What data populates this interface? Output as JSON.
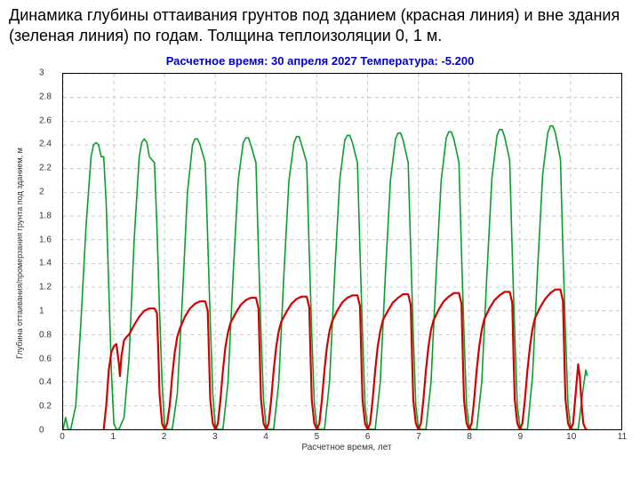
{
  "title_text": "Динамика глубины оттаивания грунтов под зданием (красная линия) и вне здания (зеленая линия) по годам. Толщина теплоизоляции 0, 1 м.",
  "chart": {
    "type": "line",
    "title": "Расчетное время: 30 апреля 2027 Температура: -5.200",
    "title_color": "#0000cc",
    "title_fontsize": 13,
    "xlabel": "Расчетное время, лет",
    "ylabel": "Глубина оттаивания/промерзания грунта под зданием, м",
    "label_fontsize": 9,
    "xlim": [
      0,
      11
    ],
    "ylim": [
      0,
      3
    ],
    "xtick_step": 1,
    "ytick_step": 0.2,
    "background_color": "#ffffff",
    "grid_color": "#c8c8c8",
    "grid_dash": "4,4",
    "axis_color": "#000000",
    "series": [
      {
        "name": "green",
        "color": "#099e2e",
        "width": 1.6,
        "data": [
          [
            0.0,
            0.0
          ],
          [
            0.05,
            0.1
          ],
          [
            0.1,
            0.0
          ],
          [
            0.15,
            0.0
          ],
          [
            0.25,
            0.2
          ],
          [
            0.35,
            0.9
          ],
          [
            0.45,
            1.7
          ],
          [
            0.55,
            2.3
          ],
          [
            0.6,
            2.4
          ],
          [
            0.65,
            2.42
          ],
          [
            0.7,
            2.4
          ],
          [
            0.75,
            2.3
          ],
          [
            0.8,
            2.3
          ],
          [
            0.85,
            1.9
          ],
          [
            0.9,
            1.2
          ],
          [
            0.95,
            0.5
          ],
          [
            1.0,
            0.05
          ],
          [
            1.05,
            0.0
          ],
          [
            1.1,
            0.0
          ],
          [
            1.2,
            0.1
          ],
          [
            1.3,
            0.6
          ],
          [
            1.4,
            1.6
          ],
          [
            1.5,
            2.3
          ],
          [
            1.55,
            2.42
          ],
          [
            1.6,
            2.45
          ],
          [
            1.65,
            2.42
          ],
          [
            1.7,
            2.3
          ],
          [
            1.8,
            2.25
          ],
          [
            1.85,
            1.7
          ],
          [
            1.9,
            1.0
          ],
          [
            1.95,
            0.4
          ],
          [
            2.0,
            0.02
          ],
          [
            2.05,
            0.0
          ],
          [
            2.15,
            0.0
          ],
          [
            2.25,
            0.3
          ],
          [
            2.35,
            1.1
          ],
          [
            2.45,
            2.0
          ],
          [
            2.55,
            2.4
          ],
          [
            2.6,
            2.45
          ],
          [
            2.65,
            2.45
          ],
          [
            2.7,
            2.4
          ],
          [
            2.8,
            2.25
          ],
          [
            2.85,
            1.6
          ],
          [
            2.9,
            0.9
          ],
          [
            2.95,
            0.3
          ],
          [
            3.0,
            0.02
          ],
          [
            3.05,
            0.0
          ],
          [
            3.15,
            0.0
          ],
          [
            3.25,
            0.4
          ],
          [
            3.35,
            1.3
          ],
          [
            3.45,
            2.1
          ],
          [
            3.55,
            2.42
          ],
          [
            3.6,
            2.46
          ],
          [
            3.65,
            2.46
          ],
          [
            3.7,
            2.4
          ],
          [
            3.8,
            2.25
          ],
          [
            3.85,
            1.5
          ],
          [
            3.9,
            0.8
          ],
          [
            3.95,
            0.25
          ],
          [
            4.0,
            0.02
          ],
          [
            4.05,
            0.0
          ],
          [
            4.15,
            0.0
          ],
          [
            4.25,
            0.4
          ],
          [
            4.35,
            1.3
          ],
          [
            4.45,
            2.1
          ],
          [
            4.55,
            2.42
          ],
          [
            4.6,
            2.47
          ],
          [
            4.65,
            2.47
          ],
          [
            4.7,
            2.4
          ],
          [
            4.8,
            2.25
          ],
          [
            4.85,
            1.5
          ],
          [
            4.9,
            0.8
          ],
          [
            4.95,
            0.22
          ],
          [
            5.0,
            0.02
          ],
          [
            5.05,
            0.0
          ],
          [
            5.15,
            0.0
          ],
          [
            5.25,
            0.4
          ],
          [
            5.35,
            1.3
          ],
          [
            5.45,
            2.1
          ],
          [
            5.55,
            2.44
          ],
          [
            5.6,
            2.48
          ],
          [
            5.65,
            2.48
          ],
          [
            5.7,
            2.42
          ],
          [
            5.8,
            2.25
          ],
          [
            5.85,
            1.5
          ],
          [
            5.9,
            0.8
          ],
          [
            5.95,
            0.2
          ],
          [
            6.0,
            0.02
          ],
          [
            6.05,
            0.0
          ],
          [
            6.15,
            0.0
          ],
          [
            6.25,
            0.4
          ],
          [
            6.35,
            1.3
          ],
          [
            6.45,
            2.1
          ],
          [
            6.55,
            2.45
          ],
          [
            6.6,
            2.5
          ],
          [
            6.65,
            2.5
          ],
          [
            6.7,
            2.44
          ],
          [
            6.8,
            2.25
          ],
          [
            6.85,
            1.5
          ],
          [
            6.9,
            0.8
          ],
          [
            6.95,
            0.2
          ],
          [
            7.0,
            0.02
          ],
          [
            7.05,
            0.0
          ],
          [
            7.15,
            0.0
          ],
          [
            7.25,
            0.4
          ],
          [
            7.35,
            1.3
          ],
          [
            7.45,
            2.1
          ],
          [
            7.55,
            2.46
          ],
          [
            7.6,
            2.51
          ],
          [
            7.65,
            2.51
          ],
          [
            7.7,
            2.45
          ],
          [
            7.8,
            2.25
          ],
          [
            7.85,
            1.5
          ],
          [
            7.9,
            0.8
          ],
          [
            7.95,
            0.2
          ],
          [
            8.0,
            0.02
          ],
          [
            8.05,
            0.0
          ],
          [
            8.15,
            0.0
          ],
          [
            8.25,
            0.4
          ],
          [
            8.35,
            1.3
          ],
          [
            8.45,
            2.12
          ],
          [
            8.55,
            2.48
          ],
          [
            8.6,
            2.53
          ],
          [
            8.65,
            2.53
          ],
          [
            8.7,
            2.47
          ],
          [
            8.8,
            2.27
          ],
          [
            8.85,
            1.5
          ],
          [
            8.9,
            0.8
          ],
          [
            8.95,
            0.2
          ],
          [
            9.0,
            0.02
          ],
          [
            9.05,
            0.0
          ],
          [
            9.15,
            0.0
          ],
          [
            9.25,
            0.45
          ],
          [
            9.35,
            1.35
          ],
          [
            9.45,
            2.15
          ],
          [
            9.55,
            2.5
          ],
          [
            9.6,
            2.56
          ],
          [
            9.65,
            2.56
          ],
          [
            9.7,
            2.5
          ],
          [
            9.8,
            2.28
          ],
          [
            9.85,
            1.5
          ],
          [
            9.9,
            0.8
          ],
          [
            9.95,
            0.2
          ],
          [
            10.0,
            0.02
          ],
          [
            10.05,
            0.0
          ],
          [
            10.15,
            0.0
          ],
          [
            10.25,
            0.35
          ],
          [
            10.3,
            0.5
          ],
          [
            10.33,
            0.45
          ]
        ]
      },
      {
        "name": "red",
        "color": "#d40000",
        "width": 2.2,
        "data": [
          [
            0.8,
            0.0
          ],
          [
            0.85,
            0.2
          ],
          [
            0.9,
            0.5
          ],
          [
            0.95,
            0.65
          ],
          [
            1.0,
            0.7
          ],
          [
            1.05,
            0.72
          ],
          [
            1.1,
            0.55
          ],
          [
            1.12,
            0.45
          ],
          [
            1.15,
            0.62
          ],
          [
            1.2,
            0.75
          ],
          [
            1.25,
            0.78
          ],
          [
            1.3,
            0.8
          ],
          [
            1.4,
            0.88
          ],
          [
            1.5,
            0.95
          ],
          [
            1.6,
            1.0
          ],
          [
            1.7,
            1.02
          ],
          [
            1.8,
            1.02
          ],
          [
            1.85,
            0.98
          ],
          [
            1.88,
            0.6
          ],
          [
            1.9,
            0.3
          ],
          [
            1.95,
            0.05
          ],
          [
            2.0,
            0.0
          ],
          [
            2.05,
            0.05
          ],
          [
            2.1,
            0.2
          ],
          [
            2.15,
            0.45
          ],
          [
            2.2,
            0.65
          ],
          [
            2.25,
            0.78
          ],
          [
            2.3,
            0.85
          ],
          [
            2.4,
            0.95
          ],
          [
            2.5,
            1.02
          ],
          [
            2.6,
            1.06
          ],
          [
            2.7,
            1.08
          ],
          [
            2.8,
            1.08
          ],
          [
            2.85,
            1.0
          ],
          [
            2.88,
            0.55
          ],
          [
            2.9,
            0.25
          ],
          [
            2.95,
            0.05
          ],
          [
            3.0,
            0.0
          ],
          [
            3.05,
            0.05
          ],
          [
            3.1,
            0.25
          ],
          [
            3.15,
            0.5
          ],
          [
            3.2,
            0.7
          ],
          [
            3.25,
            0.82
          ],
          [
            3.3,
            0.9
          ],
          [
            3.4,
            0.98
          ],
          [
            3.5,
            1.05
          ],
          [
            3.6,
            1.09
          ],
          [
            3.7,
            1.11
          ],
          [
            3.8,
            1.11
          ],
          [
            3.85,
            1.02
          ],
          [
            3.88,
            0.55
          ],
          [
            3.9,
            0.25
          ],
          [
            3.95,
            0.05
          ],
          [
            4.0,
            0.0
          ],
          [
            4.05,
            0.05
          ],
          [
            4.1,
            0.25
          ],
          [
            4.15,
            0.5
          ],
          [
            4.2,
            0.7
          ],
          [
            4.25,
            0.83
          ],
          [
            4.3,
            0.91
          ],
          [
            4.4,
            0.99
          ],
          [
            4.5,
            1.06
          ],
          [
            4.6,
            1.1
          ],
          [
            4.7,
            1.12
          ],
          [
            4.8,
            1.12
          ],
          [
            4.85,
            1.03
          ],
          [
            4.88,
            0.55
          ],
          [
            4.9,
            0.25
          ],
          [
            4.95,
            0.05
          ],
          [
            5.0,
            0.0
          ],
          [
            5.05,
            0.05
          ],
          [
            5.1,
            0.25
          ],
          [
            5.15,
            0.5
          ],
          [
            5.2,
            0.7
          ],
          [
            5.25,
            0.83
          ],
          [
            5.3,
            0.91
          ],
          [
            5.4,
            1.0
          ],
          [
            5.5,
            1.07
          ],
          [
            5.6,
            1.11
          ],
          [
            5.7,
            1.13
          ],
          [
            5.8,
            1.13
          ],
          [
            5.85,
            1.04
          ],
          [
            5.88,
            0.55
          ],
          [
            5.9,
            0.25
          ],
          [
            5.95,
            0.05
          ],
          [
            6.0,
            0.0
          ],
          [
            6.05,
            0.05
          ],
          [
            6.1,
            0.25
          ],
          [
            6.15,
            0.5
          ],
          [
            6.2,
            0.7
          ],
          [
            6.25,
            0.83
          ],
          [
            6.3,
            0.92
          ],
          [
            6.4,
            1.0
          ],
          [
            6.5,
            1.07
          ],
          [
            6.6,
            1.11
          ],
          [
            6.7,
            1.14
          ],
          [
            6.8,
            1.14
          ],
          [
            6.85,
            1.05
          ],
          [
            6.88,
            0.55
          ],
          [
            6.9,
            0.25
          ],
          [
            6.95,
            0.05
          ],
          [
            7.0,
            0.0
          ],
          [
            7.05,
            0.05
          ],
          [
            7.1,
            0.25
          ],
          [
            7.15,
            0.5
          ],
          [
            7.2,
            0.7
          ],
          [
            7.25,
            0.84
          ],
          [
            7.3,
            0.92
          ],
          [
            7.4,
            1.01
          ],
          [
            7.5,
            1.08
          ],
          [
            7.6,
            1.12
          ],
          [
            7.7,
            1.15
          ],
          [
            7.8,
            1.15
          ],
          [
            7.85,
            1.06
          ],
          [
            7.88,
            0.55
          ],
          [
            7.9,
            0.25
          ],
          [
            7.95,
            0.05
          ],
          [
            8.0,
            0.0
          ],
          [
            8.05,
            0.05
          ],
          [
            8.1,
            0.25
          ],
          [
            8.15,
            0.5
          ],
          [
            8.2,
            0.7
          ],
          [
            8.25,
            0.84
          ],
          [
            8.3,
            0.93
          ],
          [
            8.4,
            1.02
          ],
          [
            8.5,
            1.09
          ],
          [
            8.6,
            1.13
          ],
          [
            8.7,
            1.16
          ],
          [
            8.8,
            1.16
          ],
          [
            8.85,
            1.07
          ],
          [
            8.88,
            0.55
          ],
          [
            8.9,
            0.25
          ],
          [
            8.95,
            0.05
          ],
          [
            9.0,
            0.0
          ],
          [
            9.05,
            0.05
          ],
          [
            9.1,
            0.25
          ],
          [
            9.15,
            0.5
          ],
          [
            9.2,
            0.7
          ],
          [
            9.25,
            0.85
          ],
          [
            9.3,
            0.94
          ],
          [
            9.4,
            1.03
          ],
          [
            9.5,
            1.1
          ],
          [
            9.6,
            1.15
          ],
          [
            9.7,
            1.18
          ],
          [
            9.8,
            1.18
          ],
          [
            9.85,
            1.08
          ],
          [
            9.88,
            0.55
          ],
          [
            9.9,
            0.25
          ],
          [
            9.95,
            0.05
          ],
          [
            10.0,
            0.0
          ],
          [
            10.05,
            0.05
          ],
          [
            10.1,
            0.3
          ],
          [
            10.15,
            0.55
          ],
          [
            10.18,
            0.45
          ],
          [
            10.22,
            0.2
          ],
          [
            10.25,
            0.05
          ],
          [
            10.3,
            0.0
          ],
          [
            10.33,
            0.0
          ]
        ]
      }
    ]
  }
}
